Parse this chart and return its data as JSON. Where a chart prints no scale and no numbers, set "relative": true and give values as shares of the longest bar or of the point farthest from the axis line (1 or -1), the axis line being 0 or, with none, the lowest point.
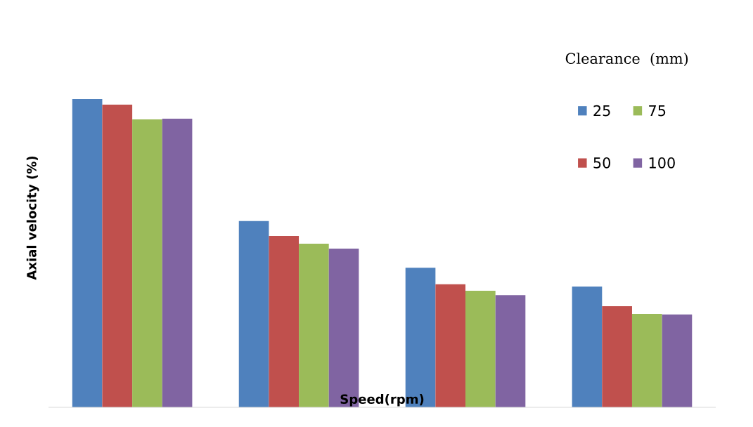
{
  "chart_data": {
    "type": "bar",
    "relative": true,
    "xlabel": "Speed(rpm)",
    "ylabel": "Axial velocity (%)",
    "legend_title": "Clearance  (mm)",
    "legend": "top right",
    "grid": false,
    "categories": [
      null,
      null,
      null,
      null
    ],
    "series": [
      {
        "name": "25",
        "color": "#4f81bd",
        "values": [
          1,
          0.604,
          0.453,
          0.392
        ]
      },
      {
        "name": "50",
        "color": "#c0504d",
        "values": [
          0.982,
          0.556,
          0.399,
          0.328
        ]
      },
      {
        "name": "75",
        "color": "#9bbb59",
        "values": [
          0.934,
          0.531,
          0.378,
          0.303
        ]
      },
      {
        "name": "100",
        "color": "#8064a2",
        "values": [
          0.936,
          0.515,
          0.364,
          0.301
        ]
      }
    ]
  }
}
